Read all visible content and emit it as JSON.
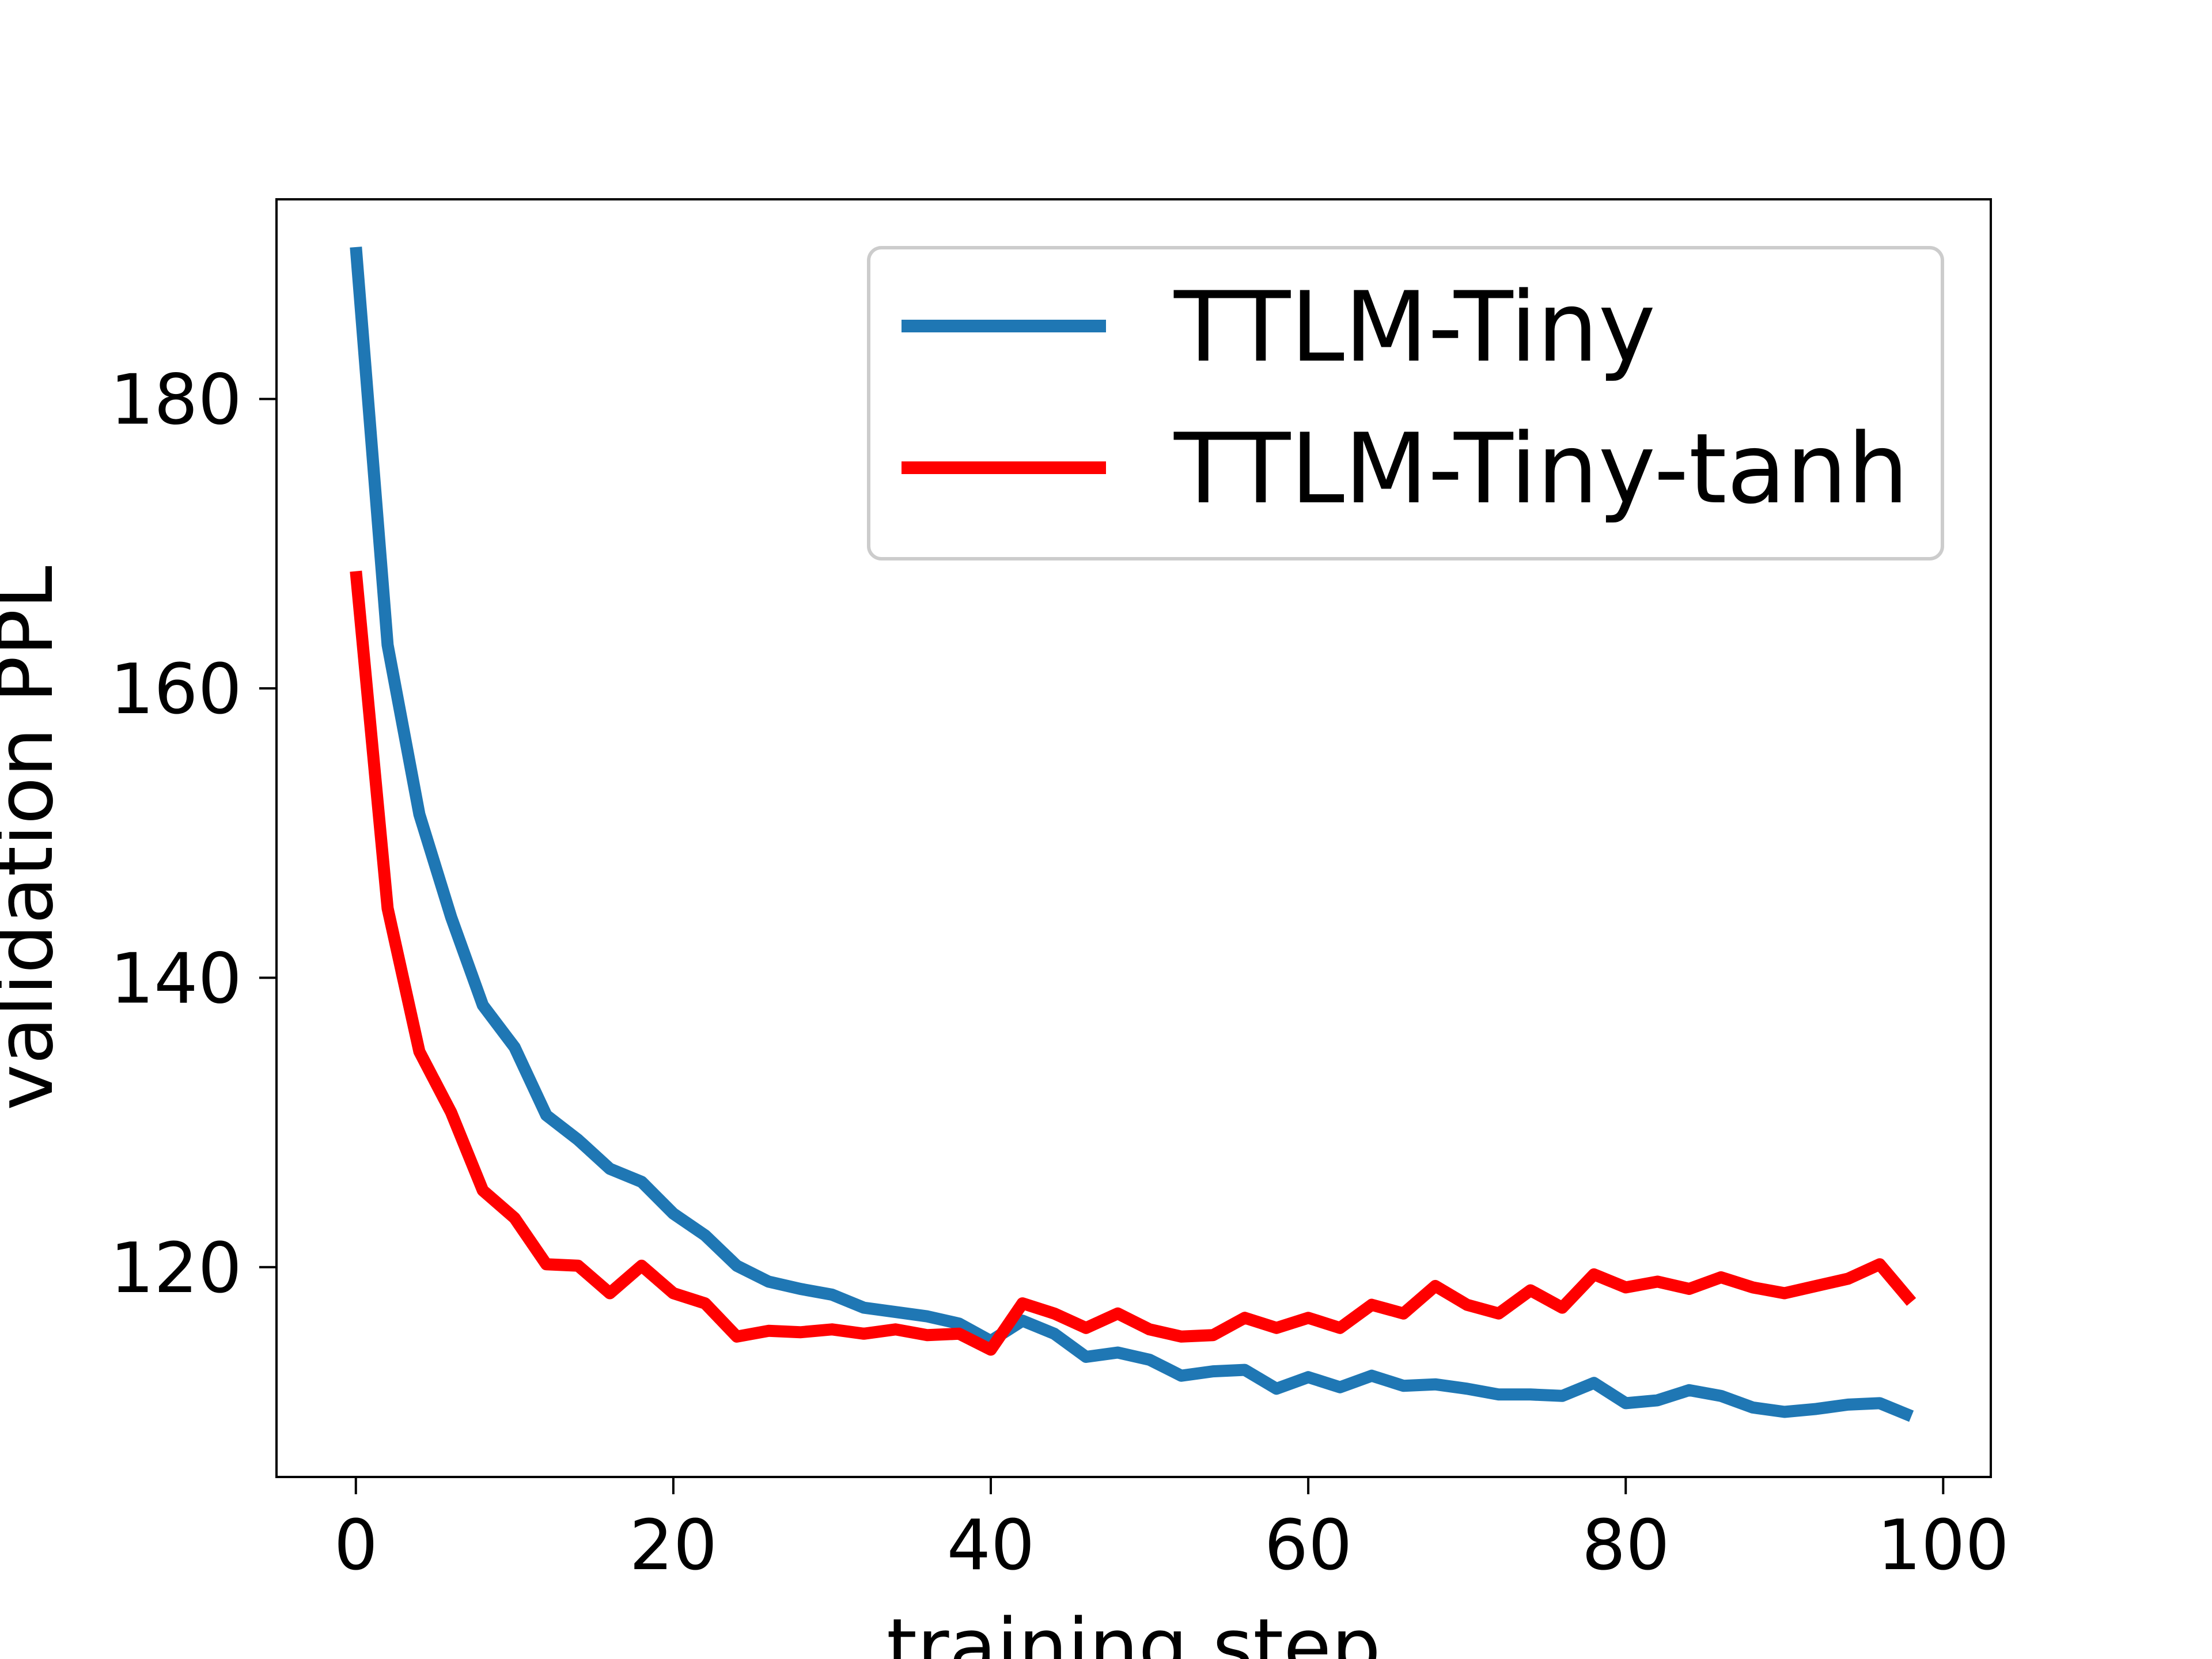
{
  "chart_data": {
    "type": "line",
    "title": "",
    "xlabel": "training step",
    "ylabel": "validation PPL",
    "xlim": [
      -5,
      103
    ],
    "ylim": [
      105.5,
      193.8
    ],
    "xticks": [
      0,
      20,
      40,
      60,
      80,
      100
    ],
    "yticks": [
      120,
      140,
      160,
      180
    ],
    "grid": false,
    "legend_position": "upper right",
    "series": [
      {
        "name": "TTLM-Tiny",
        "color": "#1f77b4",
        "x": [
          0,
          2,
          4,
          6,
          8,
          10,
          12,
          14,
          16,
          18,
          20,
          22,
          24,
          26,
          28,
          30,
          32,
          34,
          36,
          38,
          40,
          42,
          44,
          46,
          48,
          50,
          52,
          54,
          56,
          58,
          60,
          62,
          64,
          66,
          68,
          70,
          72,
          74,
          76,
          78,
          80,
          82,
          84,
          86,
          88,
          90,
          92,
          94,
          96,
          98
        ],
        "y": [
          190.5,
          163.0,
          151.3,
          144.2,
          138.1,
          135.2,
          130.5,
          128.8,
          126.8,
          125.9,
          123.7,
          122.2,
          120.1,
          119.0,
          118.5,
          118.1,
          117.2,
          116.9,
          116.6,
          116.1,
          114.9,
          116.3,
          115.4,
          113.8,
          114.1,
          113.6,
          112.5,
          112.8,
          112.9,
          111.6,
          112.4,
          111.7,
          112.5,
          111.8,
          111.9,
          111.6,
          111.2,
          111.2,
          111.1,
          112.0,
          110.6,
          110.8,
          111.5,
          111.1,
          110.3,
          110.0,
          110.2,
          110.5,
          110.6,
          109.7
        ]
      },
      {
        "name": "TTLM-Tiny-tanh",
        "color": "#ff0000",
        "x": [
          0,
          2,
          4,
          6,
          8,
          10,
          12,
          14,
          16,
          18,
          20,
          22,
          24,
          26,
          28,
          30,
          32,
          34,
          36,
          38,
          40,
          42,
          44,
          46,
          48,
          50,
          52,
          54,
          56,
          58,
          60,
          62,
          64,
          66,
          68,
          70,
          72,
          74,
          76,
          78,
          80,
          82,
          84,
          86,
          88,
          90,
          92,
          94,
          96,
          98
        ],
        "y": [
          168.1,
          144.8,
          134.9,
          130.7,
          125.3,
          123.4,
          120.2,
          120.1,
          118.2,
          120.1,
          118.2,
          117.5,
          115.2,
          115.6,
          115.5,
          115.7,
          115.4,
          115.7,
          115.3,
          115.4,
          114.3,
          117.5,
          116.8,
          115.8,
          116.8,
          115.7,
          115.2,
          115.3,
          116.5,
          115.8,
          116.5,
          115.8,
          117.4,
          116.8,
          118.7,
          117.4,
          116.8,
          118.4,
          117.2,
          119.5,
          118.6,
          119.0,
          118.5,
          119.3,
          118.6,
          118.2,
          118.7,
          119.2,
          120.2,
          117.6
        ]
      }
    ]
  }
}
